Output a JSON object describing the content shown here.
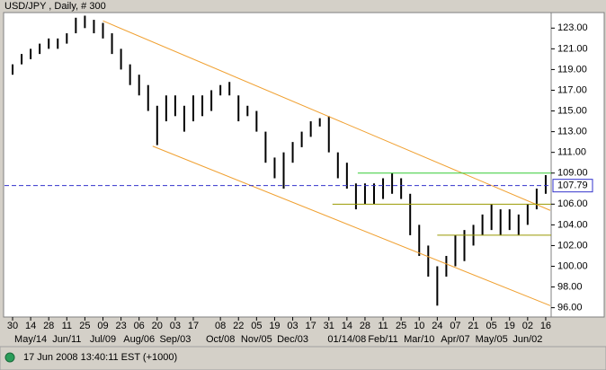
{
  "chart_data": {
    "type": "range-bar",
    "title": "USD/JPY , Daily, # 300",
    "status": "17 Jun 2008 13:40:11 EST (+1000)",
    "categories": [
      "30",
      null,
      "14",
      null,
      "28",
      null,
      "11",
      null,
      "25",
      null,
      "09",
      null,
      "23",
      null,
      "06",
      null,
      "20",
      null,
      "03",
      null,
      "17",
      null,
      null,
      "08",
      null,
      "22",
      null,
      "05",
      null,
      "19",
      null,
      "03",
      null,
      "17",
      null,
      "31",
      null,
      "14",
      null,
      "28",
      null,
      "11",
      null,
      "25",
      null,
      "10",
      null,
      "24",
      null,
      "07",
      null,
      "21",
      null,
      "05",
      null,
      "19",
      null,
      "02",
      null,
      "16"
    ],
    "period_labels": [
      null,
      null,
      "May/14",
      null,
      null,
      null,
      "Jun/11",
      null,
      null,
      null,
      "Jul/09",
      null,
      null,
      null,
      "Aug/06",
      null,
      null,
      null,
      "Sep/03",
      null,
      null,
      null,
      null,
      "Oct/08",
      null,
      null,
      null,
      "Nov/05",
      null,
      null,
      null,
      "Dec/03",
      null,
      null,
      null,
      null,
      null,
      "01/14/08",
      null,
      null,
      null,
      "Feb/11",
      null,
      null,
      null,
      "Mar/10",
      null,
      null,
      null,
      "Apr/07",
      null,
      null,
      null,
      "May/05",
      null,
      null,
      null,
      "Jun/02",
      null,
      null
    ],
    "high": [
      119.5,
      120.5,
      121,
      121.5,
      122,
      122,
      122.5,
      124,
      124.2,
      123.8,
      123.5,
      122.5,
      121,
      119.5,
      118.5,
      117.5,
      115.5,
      116.5,
      116.5,
      115.5,
      116.5,
      116.5,
      117,
      117.5,
      117.8,
      116.5,
      115.5,
      115,
      113,
      110.5,
      111,
      112,
      113,
      114,
      114.3,
      114.5,
      111,
      110,
      108,
      108,
      108,
      108.5,
      109,
      108.5,
      107,
      104,
      102,
      100,
      101,
      103,
      103.5,
      104,
      105,
      106,
      105.5,
      105.5,
      105,
      106,
      107.5,
      108.8
    ],
    "low": [
      118.5,
      119.5,
      120,
      120.5,
      121,
      121,
      121.5,
      122.5,
      123,
      122.5,
      122,
      120.5,
      119,
      117.5,
      116.5,
      115,
      111.7,
      114,
      114.5,
      113,
      114,
      114.5,
      115,
      116.5,
      116.5,
      114,
      114.5,
      113,
      110,
      108.5,
      107.5,
      110,
      111.5,
      112.5,
      113.5,
      111,
      108.5,
      107.5,
      105.5,
      106,
      106,
      106.5,
      107,
      106.5,
      103,
      101,
      99,
      96.2,
      99,
      100,
      100.5,
      102,
      103,
      103.5,
      103,
      103.5,
      103,
      104,
      105.5,
      107
    ],
    "color": "#000000",
    "ylim": [
      95.1,
      124.5
    ],
    "yticks": [
      {
        "value": 96,
        "label": "96.00"
      },
      {
        "value": 98,
        "label": "98.00"
      },
      {
        "value": 100,
        "label": "100.00"
      },
      {
        "value": 102,
        "label": "102.00"
      },
      {
        "value": 104,
        "label": "104.00"
      },
      {
        "value": 106,
        "label": "106.00"
      },
      {
        "value": 109,
        "label": "109.00"
      },
      {
        "value": 111,
        "label": "111.00"
      },
      {
        "value": 113,
        "label": "113.00"
      },
      {
        "value": 115,
        "label": "115.00"
      },
      {
        "value": 117,
        "label": "117.00"
      },
      {
        "value": 119,
        "label": "119.00"
      },
      {
        "value": 121,
        "label": "121.00"
      },
      {
        "value": 123,
        "label": "123.00"
      }
    ],
    "last": {
      "value": 107.79,
      "label": "107.79",
      "color": "#3333cc"
    },
    "trendlines": [
      {
        "from": [
          10,
          123.7
        ],
        "to": [
          59.5,
          105.4
        ],
        "color": "#f0a030"
      },
      {
        "from": [
          15.5,
          111.6
        ],
        "to": [
          59.5,
          96.2
        ],
        "color": "#f0a030"
      }
    ],
    "levels": [
      {
        "value": 109,
        "start": 38.2,
        "color": "#33cc33"
      },
      {
        "value": 106,
        "start": 35.4,
        "color": "#999900"
      },
      {
        "value": 103,
        "start": 47,
        "color": "#999900"
      }
    ]
  }
}
